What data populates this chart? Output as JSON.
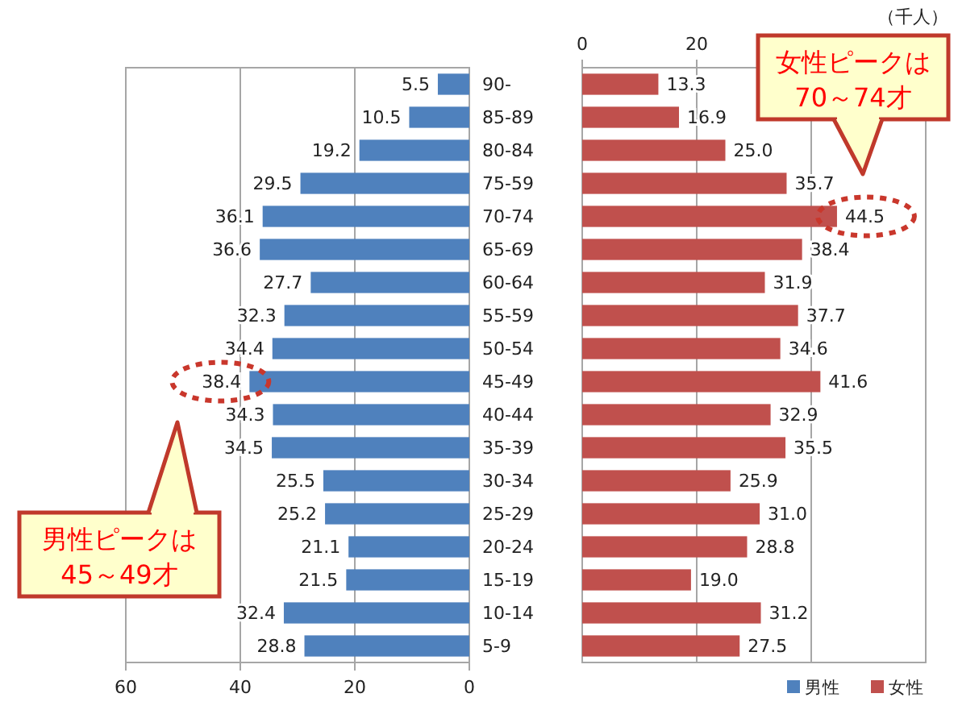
{
  "chart_data": [
    {
      "type": "bar",
      "orientation": "horizontal",
      "categories": [
        "90-",
        "85-89",
        "80-84",
        "75-59",
        "70-74",
        "65-69",
        "60-64",
        "55-59",
        "50-54",
        "45-49",
        "40-44",
        "35-39",
        "30-34",
        "25-29",
        "20-24",
        "15-19",
        "10-14",
        "5-9"
      ],
      "series": [
        {
          "name": "男性",
          "color": "#4f81bd",
          "values": [
            5.5,
            10.5,
            19.2,
            29.5,
            36.1,
            36.6,
            27.7,
            32.3,
            34.4,
            38.4,
            34.3,
            34.5,
            25.5,
            25.2,
            21.1,
            21.5,
            32.4,
            28.8
          ],
          "value_labels": [
            "5.5",
            "10.5",
            "19.2",
            "29.5",
            "36.1",
            "36.6",
            "27.7",
            "32.3",
            "34.4",
            "38.4",
            "34.3",
            "34.5",
            "25.5",
            "25.2",
            "21.1",
            "21.5",
            "32.4",
            "28.8"
          ]
        }
      ],
      "xlim": [
        60,
        0
      ],
      "xticks": [
        60,
        40,
        20,
        0
      ],
      "grid": "x",
      "legend": "bottom right",
      "annotations": [
        "男性ピークは\n45～49才"
      ]
    },
    {
      "type": "bar",
      "orientation": "horizontal",
      "categories": [
        null,
        null,
        null,
        null,
        null,
        null,
        null,
        null,
        null,
        null,
        null,
        null,
        null,
        null,
        null,
        null,
        null,
        null
      ],
      "series": [
        {
          "name": "女性",
          "color": "#c0504d",
          "values": [
            13.3,
            16.9,
            25.0,
            35.7,
            44.5,
            38.4,
            31.9,
            37.7,
            34.6,
            41.6,
            32.9,
            35.5,
            25.9,
            31.0,
            28.8,
            19.0,
            31.2,
            27.5
          ],
          "value_labels": [
            "13.3",
            "16.9",
            "25.0",
            "35.7",
            "44.5",
            "38.4",
            "31.9",
            "37.7",
            "34.6",
            "41.6",
            "32.9",
            "35.5",
            "25.9",
            "31.0",
            "28.8",
            "19.0",
            "31.2",
            "27.5"
          ]
        }
      ],
      "xlim": [
        0,
        60
      ],
      "xticks": [
        0,
        20,
        {
          "value": 40,
          "label": null
        },
        {
          "value": 60,
          "label": null
        }
      ],
      "xlabel": "（千人）",
      "tick_labels": "x",
      "grid": "x",
      "legend": "bottom right",
      "annotations": [
        "女性ピークは\n70～74才"
      ]
    }
  ]
}
